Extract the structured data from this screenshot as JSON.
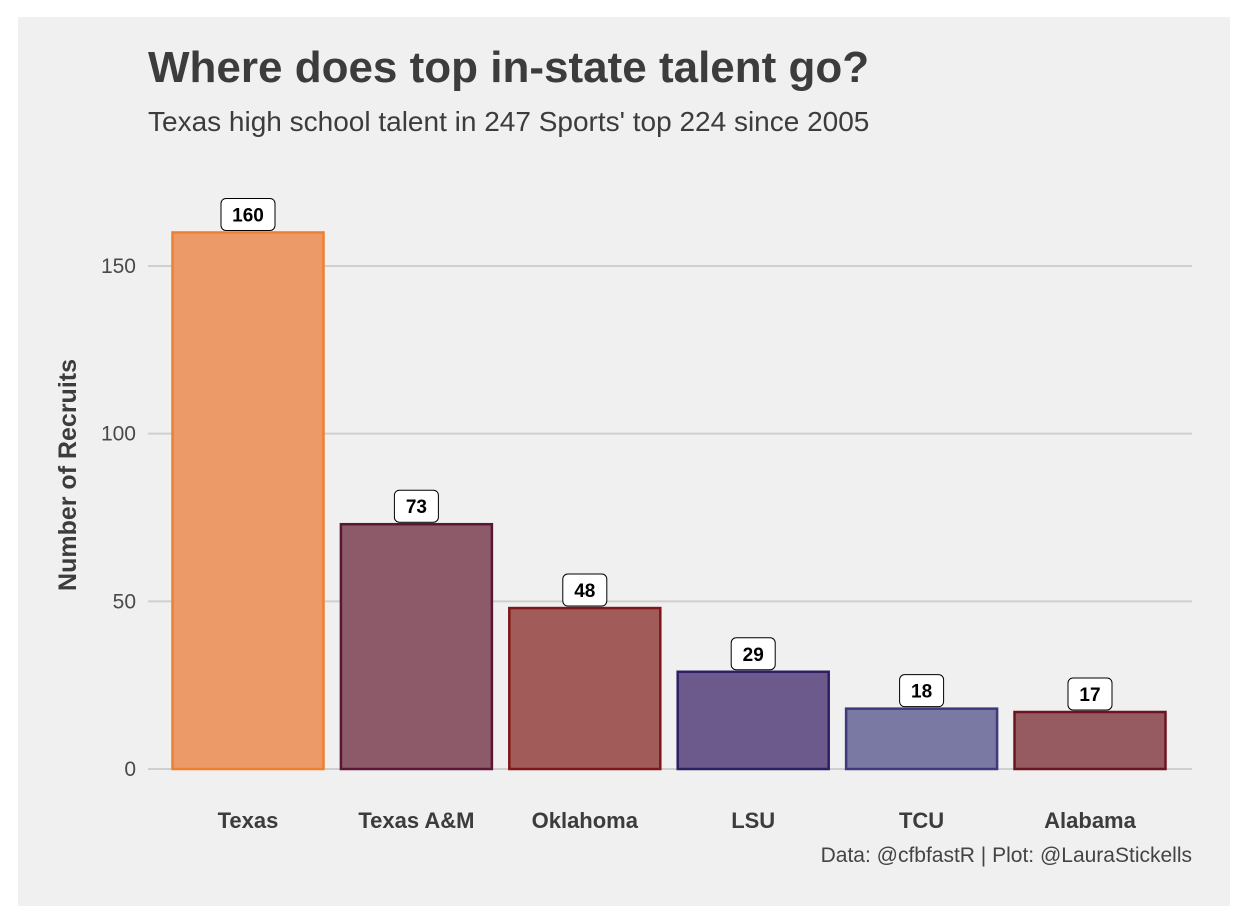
{
  "chart_data": {
    "type": "bar",
    "title": "Where does top in-state talent go?",
    "subtitle": "Texas high school talent in 247 Sports' top 224 since 2005",
    "caption": "Data: @cfbfastR | Plot: @LauraStickells",
    "xlabel": "",
    "ylabel": "Number of Recruits",
    "categories": [
      "Texas",
      "Texas A&M",
      "Oklahoma",
      "LSU",
      "TCU",
      "Alabama"
    ],
    "values": [
      160,
      73,
      48,
      29,
      18,
      17
    ],
    "data_labels": [
      "160",
      "73",
      "48",
      "29",
      "18",
      "17"
    ],
    "ylim": [
      0,
      170
    ],
    "yticks": [
      0,
      50,
      100,
      150
    ],
    "ytick_labels": [
      "0",
      "50",
      "100",
      "150"
    ],
    "grid": "horizontal",
    "legend": "none",
    "fill_colors": [
      "#ec9a68",
      "#8c5a69",
      "#a15b58",
      "#6c5a8c",
      "#7a79a3",
      "#965a61"
    ],
    "border_colors": [
      "#ed7f33",
      "#5a1634",
      "#7f1619",
      "#2d1f62",
      "#3e3a7c",
      "#6b1520"
    ],
    "background": "#f0f0f0",
    "grid_color": "#cfcfcf"
  }
}
